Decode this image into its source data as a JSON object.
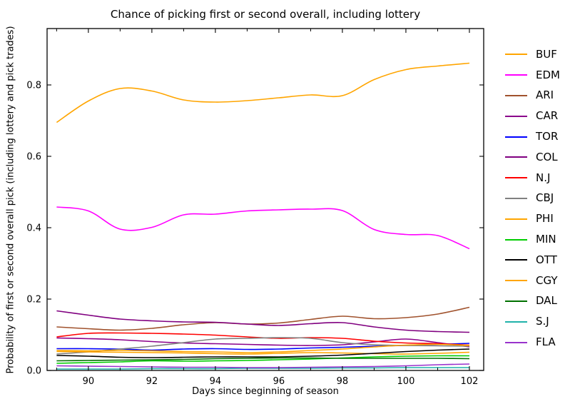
{
  "figure": {
    "background": "#FFFFFF"
  },
  "chart_data": {
    "type": "line",
    "title": "Chance of picking first or second overall, including lottery",
    "xlabel": "Days since beginning of season",
    "ylabel": "Probability of first or second overall pick (including lottery and pick trades)",
    "x": [
      89,
      90,
      91,
      92,
      93,
      94,
      95,
      96,
      97,
      98,
      99,
      100,
      101,
      102
    ],
    "xlim": [
      88.7,
      102.45
    ],
    "ylim": [
      0,
      0.958
    ],
    "xticks_major": [
      90,
      92,
      94,
      96,
      98,
      100,
      102
    ],
    "xticks_minor": [
      89,
      91,
      93,
      95,
      97,
      99,
      101
    ],
    "yticks": [
      0.0,
      0.2,
      0.4,
      0.6,
      0.8
    ],
    "ytick_labels": [
      "0.0",
      "0.2",
      "0.4",
      "0.6",
      "0.8"
    ],
    "grid": false,
    "legend_position": "right-outside",
    "series": [
      {
        "name": "BUF",
        "color": "#FFA500",
        "values": [
          0.695,
          0.755,
          0.79,
          0.783,
          0.758,
          0.752,
          0.756,
          0.764,
          0.772,
          0.77,
          0.815,
          0.843,
          0.853,
          0.861
        ]
      },
      {
        "name": "EDM",
        "color": "#FF00FF",
        "values": [
          0.458,
          0.447,
          0.396,
          0.401,
          0.436,
          0.438,
          0.447,
          0.45,
          0.452,
          0.448,
          0.395,
          0.381,
          0.378,
          0.341
        ]
      },
      {
        "name": "ARI",
        "color": "#A0522D",
        "values": [
          0.122,
          0.117,
          0.113,
          0.118,
          0.128,
          0.134,
          0.13,
          0.133,
          0.143,
          0.152,
          0.145,
          0.148,
          0.158,
          0.177
        ]
      },
      {
        "name": "CAR",
        "color": "#8B008B",
        "values": [
          0.091,
          0.089,
          0.086,
          0.081,
          0.077,
          0.075,
          0.073,
          0.071,
          0.07,
          0.072,
          0.08,
          0.088,
          0.078,
          0.066
        ]
      },
      {
        "name": "TOR",
        "color": "#0000FF",
        "values": [
          0.061,
          0.061,
          0.06,
          0.057,
          0.06,
          0.061,
          0.059,
          0.06,
          0.063,
          0.065,
          0.068,
          0.07,
          0.073,
          0.076
        ]
      },
      {
        "name": "COL",
        "color": "#800080",
        "values": [
          0.167,
          0.155,
          0.144,
          0.139,
          0.136,
          0.135,
          0.13,
          0.126,
          0.131,
          0.134,
          0.122,
          0.113,
          0.109,
          0.107
        ]
      },
      {
        "name": "N.J",
        "color": "#FF0000",
        "values": [
          0.094,
          0.104,
          0.105,
          0.104,
          0.102,
          0.099,
          0.094,
          0.09,
          0.092,
          0.09,
          0.082,
          0.077,
          0.075,
          0.071
        ]
      },
      {
        "name": "CBJ",
        "color": "#808080",
        "values": [
          0.046,
          0.052,
          0.06,
          0.068,
          0.078,
          0.088,
          0.09,
          0.092,
          0.09,
          0.078,
          0.072,
          0.07,
          0.069,
          0.068
        ]
      },
      {
        "name": "PHI",
        "color": "#FFA500",
        "values": [
          0.053,
          0.052,
          0.051,
          0.05,
          0.049,
          0.047,
          0.046,
          0.048,
          0.05,
          0.049,
          0.047,
          0.046,
          0.048,
          0.051
        ]
      },
      {
        "name": "MIN",
        "color": "#00CC00",
        "values": [
          0.02,
          0.022,
          0.024,
          0.027,
          0.026,
          0.027,
          0.028,
          0.03,
          0.032,
          0.035,
          0.038,
          0.04,
          0.041,
          0.041
        ]
      },
      {
        "name": "OTT",
        "color": "#000000",
        "values": [
          0.042,
          0.04,
          0.037,
          0.036,
          0.037,
          0.038,
          0.038,
          0.038,
          0.04,
          0.043,
          0.048,
          0.053,
          0.057,
          0.06
        ]
      },
      {
        "name": "CGY",
        "color": "#FFA500",
        "values": [
          0.056,
          0.055,
          0.056,
          0.055,
          0.053,
          0.052,
          0.05,
          0.052,
          0.056,
          0.06,
          0.066,
          0.071,
          0.073,
          0.07
        ]
      },
      {
        "name": "DAL",
        "color": "#007000",
        "values": [
          0.027,
          0.028,
          0.029,
          0.03,
          0.031,
          0.033,
          0.034,
          0.035,
          0.035,
          0.034,
          0.034,
          0.034,
          0.034,
          0.033
        ]
      },
      {
        "name": "S.J",
        "color": "#20B2AA",
        "values": [
          0.004,
          0.004,
          0.004,
          0.005,
          0.005,
          0.005,
          0.006,
          0.006,
          0.006,
          0.007,
          0.007,
          0.008,
          0.008,
          0.008
        ]
      },
      {
        "name": "FLA",
        "color": "#9932CC",
        "values": [
          0.013,
          0.012,
          0.011,
          0.01,
          0.009,
          0.009,
          0.008,
          0.008,
          0.009,
          0.01,
          0.011,
          0.013,
          0.016,
          0.018
        ]
      }
    ]
  }
}
